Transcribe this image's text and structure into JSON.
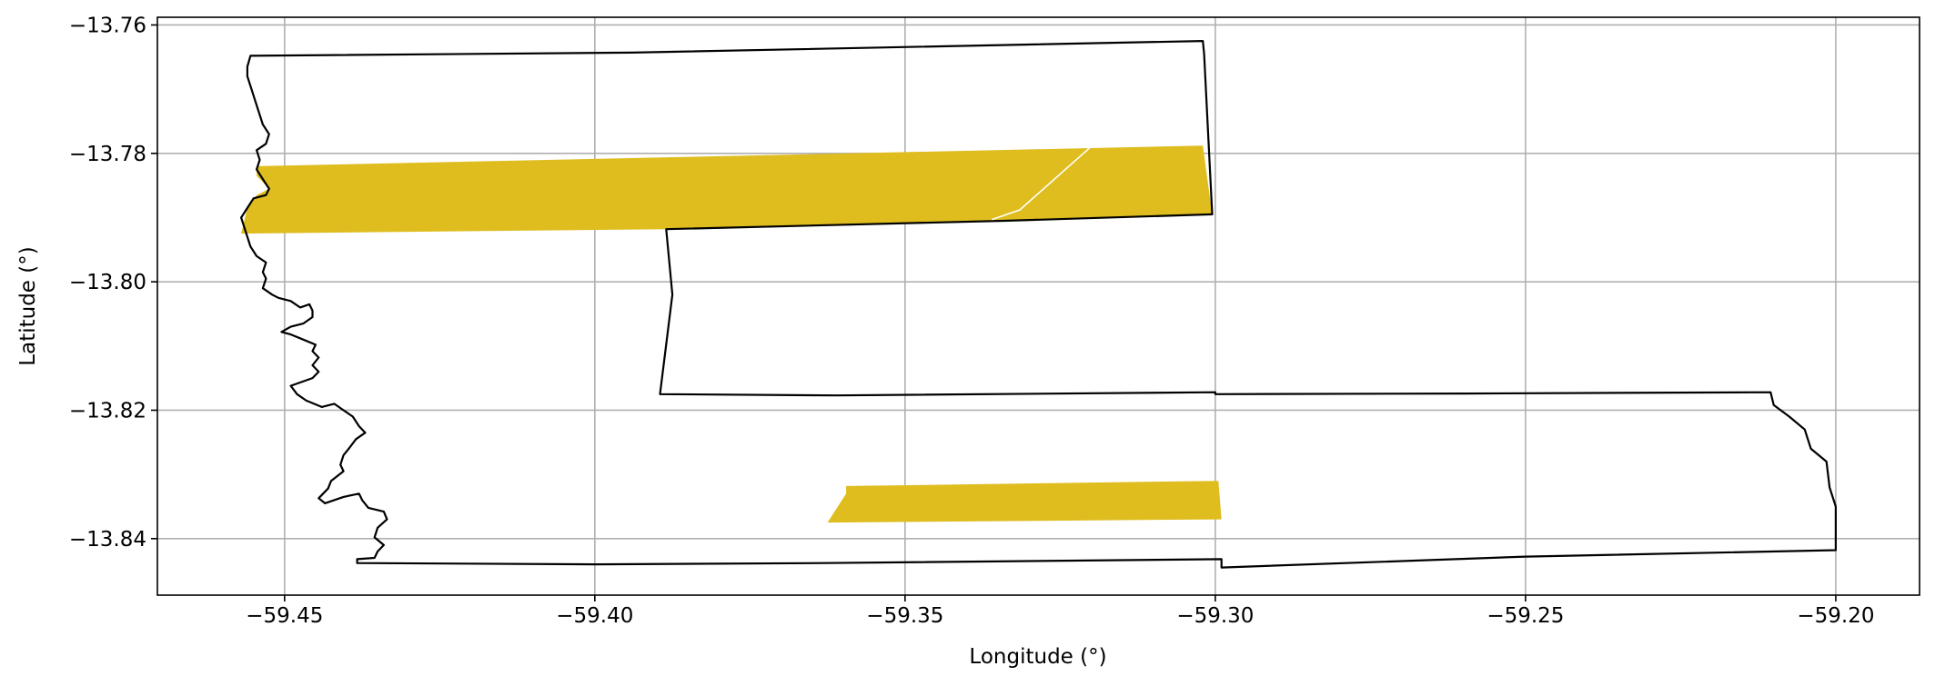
{
  "figure": {
    "xlabel": "Longitude (°)",
    "ylabel": "Latitude (°)",
    "xlim": [
      -59.4705,
      -59.1865
    ],
    "ylim": [
      -13.8488,
      -13.7588
    ],
    "grid": true,
    "colors": {
      "background": "#ffffff",
      "grid": "#b0b0b0",
      "boundary": "#000000",
      "patch_fill": "#dfbd1f",
      "trace": "#ffffff"
    }
  },
  "x_ticks": [
    {
      "value": -59.45,
      "label": "−59.45"
    },
    {
      "value": -59.4,
      "label": "−59.40"
    },
    {
      "value": -59.35,
      "label": "−59.35"
    },
    {
      "value": -59.3,
      "label": "−59.30"
    },
    {
      "value": -59.25,
      "label": "−59.25"
    },
    {
      "value": -59.2,
      "label": "−59.20"
    }
  ],
  "y_ticks": [
    {
      "value": -13.76,
      "label": "−13.76"
    },
    {
      "value": -13.78,
      "label": "−13.78"
    },
    {
      "value": -13.8,
      "label": "−13.80"
    },
    {
      "value": -13.82,
      "label": "−13.82"
    },
    {
      "value": -13.84,
      "label": "−13.84"
    }
  ],
  "boundary": [
    [
      -59.4555,
      -13.7648
    ],
    [
      -59.394,
      -13.7643
    ],
    [
      -59.302,
      -13.7625
    ],
    [
      -59.3018,
      -13.7645
    ],
    [
      -59.301,
      -13.78
    ],
    [
      -59.3005,
      -13.7895
    ],
    [
      -59.334,
      -13.7905
    ],
    [
      -59.3885,
      -13.7918
    ],
    [
      -59.3875,
      -13.802
    ],
    [
      -59.3895,
      -13.8175
    ],
    [
      -59.361,
      -13.8177
    ],
    [
      -59.3,
      -13.8172
    ],
    [
      -59.3,
      -13.8175
    ],
    [
      -59.26,
      -13.8174
    ],
    [
      -59.2105,
      -13.8172
    ],
    [
      -59.21,
      -13.8192
    ],
    [
      -59.2075,
      -13.821
    ],
    [
      -59.205,
      -13.823
    ],
    [
      -59.204,
      -13.826
    ],
    [
      -59.2015,
      -13.828
    ],
    [
      -59.201,
      -13.832
    ],
    [
      -59.2,
      -13.835
    ],
    [
      -59.2,
      -13.8418
    ],
    [
      -59.25,
      -13.8428
    ],
    [
      -59.299,
      -13.8445
    ],
    [
      -59.299,
      -13.8432
    ],
    [
      -59.363,
      -13.8438
    ],
    [
      -59.4,
      -13.844
    ],
    [
      -59.4383,
      -13.8438
    ],
    [
      -59.4383,
      -13.8432
    ],
    [
      -59.4355,
      -13.843
    ],
    [
      -59.435,
      -13.842
    ],
    [
      -59.434,
      -13.841
    ],
    [
      -59.4355,
      -13.8398
    ],
    [
      -59.435,
      -13.8383
    ],
    [
      -59.4335,
      -13.837
    ],
    [
      -59.434,
      -13.8358
    ],
    [
      -59.4365,
      -13.8352
    ],
    [
      -59.4375,
      -13.834
    ],
    [
      -59.438,
      -13.833
    ],
    [
      -59.4405,
      -13.8335
    ],
    [
      -59.442,
      -13.834
    ],
    [
      -59.4435,
      -13.8345
    ],
    [
      -59.4445,
      -13.8337
    ],
    [
      -59.443,
      -13.8322
    ],
    [
      -59.4425,
      -13.831
    ],
    [
      -59.4405,
      -13.8295
    ],
    [
      -59.441,
      -13.8285
    ],
    [
      -59.4405,
      -13.827
    ],
    [
      -59.4395,
      -13.8258
    ],
    [
      -59.4385,
      -13.8245
    ],
    [
      -59.437,
      -13.8235
    ],
    [
      -59.438,
      -13.8225
    ],
    [
      -59.439,
      -13.821
    ],
    [
      -59.4405,
      -13.82
    ],
    [
      -59.442,
      -13.819
    ],
    [
      -59.444,
      -13.8195
    ],
    [
      -59.4465,
      -13.8185
    ],
    [
      -59.448,
      -13.8175
    ],
    [
      -59.449,
      -13.8162
    ],
    [
      -59.4455,
      -13.815
    ],
    [
      -59.4445,
      -13.814
    ],
    [
      -59.4455,
      -13.813
    ],
    [
      -59.4445,
      -13.8118
    ],
    [
      -59.4455,
      -13.8108
    ],
    [
      -59.445,
      -13.8098
    ],
    [
      -59.4475,
      -13.8088
    ],
    [
      -59.449,
      -13.8082
    ],
    [
      -59.4505,
      -13.8078
    ],
    [
      -59.449,
      -13.807
    ],
    [
      -59.447,
      -13.8065
    ],
    [
      -59.4455,
      -13.8055
    ],
    [
      -59.4455,
      -13.8045
    ],
    [
      -59.446,
      -13.8035
    ],
    [
      -59.4475,
      -13.804
    ],
    [
      -59.449,
      -13.803
    ],
    [
      -59.451,
      -13.8025
    ],
    [
      -59.452,
      -13.802
    ],
    [
      -59.4535,
      -13.801
    ],
    [
      -59.453,
      -13.7995
    ],
    [
      -59.4535,
      -13.7985
    ],
    [
      -59.453,
      -13.797
    ],
    [
      -59.4545,
      -13.796
    ],
    [
      -59.4555,
      -13.7945
    ],
    [
      -59.456,
      -13.793
    ],
    [
      -59.4565,
      -13.7915
    ],
    [
      -59.457,
      -13.79
    ],
    [
      -59.456,
      -13.7885
    ],
    [
      -59.455,
      -13.787
    ],
    [
      -59.453,
      -13.7865
    ],
    [
      -59.4525,
      -13.7855
    ],
    [
      -59.4535,
      -13.784
    ],
    [
      -59.4545,
      -13.7825
    ],
    [
      -59.454,
      -13.781
    ],
    [
      -59.4545,
      -13.7795
    ],
    [
      -59.453,
      -13.7785
    ],
    [
      -59.4525,
      -13.777
    ],
    [
      -59.4535,
      -13.7755
    ],
    [
      -59.454,
      -13.774
    ],
    [
      -59.4545,
      -13.7725
    ],
    [
      -59.455,
      -13.771
    ],
    [
      -59.4555,
      -13.7695
    ],
    [
      -59.456,
      -13.768
    ],
    [
      -59.456,
      -13.7665
    ],
    [
      -59.4555,
      -13.7648
    ]
  ],
  "patches": [
    {
      "name": "upper-strip",
      "points": [
        [
          -59.4545,
          -13.782
        ],
        [
          -59.302,
          -13.7788
        ],
        [
          -59.3005,
          -13.7895
        ],
        [
          -59.334,
          -13.7905
        ],
        [
          -59.3885,
          -13.7918
        ],
        [
          -59.457,
          -13.7925
        ],
        [
          -59.456,
          -13.7885
        ],
        [
          -59.4545,
          -13.7865
        ],
        [
          -59.4525,
          -13.7855
        ],
        [
          -59.4545,
          -13.7835
        ]
      ]
    },
    {
      "name": "lower-strip",
      "points": [
        [
          -59.3595,
          -13.8318
        ],
        [
          -59.2995,
          -13.831
        ],
        [
          -59.299,
          -13.837
        ],
        [
          -59.3625,
          -13.8375
        ],
        [
          -59.3595,
          -13.833
        ]
      ]
    }
  ],
  "trace": [
    [
      -59.3195,
      -13.7785
    ],
    [
      -59.3315,
      -13.7888
    ],
    [
      -59.336,
      -13.7903
    ]
  ]
}
